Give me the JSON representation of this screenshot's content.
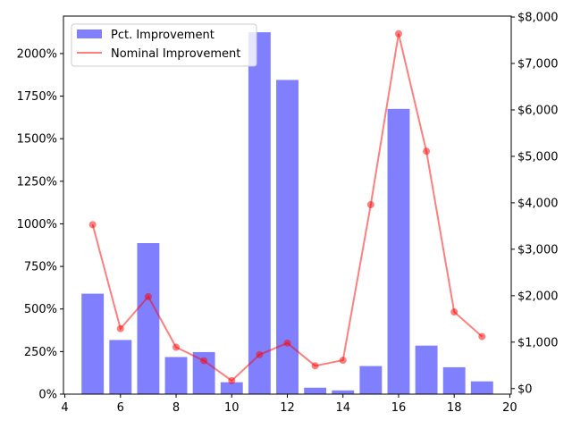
{
  "chart_data": {
    "type": "bar+line",
    "title": "",
    "xlabel": "",
    "ylabel": "",
    "x": [
      5,
      6,
      7,
      8,
      9,
      10,
      11,
      12,
      13,
      14,
      15,
      16,
      17,
      18,
      19
    ],
    "x_ticks": [
      4,
      6,
      8,
      10,
      12,
      14,
      16,
      18,
      20
    ],
    "x_tick_labels": [
      "4",
      "6",
      "8",
      "10",
      "12",
      "14",
      "16",
      "18",
      "20"
    ],
    "xlim": [
      3.95,
      20.05
    ],
    "series": [
      {
        "name": "Pct. Improvement",
        "type": "bar",
        "axis": "left",
        "color": "#8080ff",
        "values": [
          590,
          318,
          887,
          218,
          247,
          70,
          2125,
          1845,
          38,
          22,
          165,
          1675,
          285,
          158,
          75
        ]
      },
      {
        "name": "Nominal Improvement",
        "type": "line",
        "axis": "right",
        "color": "#ff0000",
        "values": [
          3530,
          1290,
          1980,
          890,
          600,
          170,
          730,
          980,
          490,
          610,
          3960,
          7640,
          5110,
          1650,
          1120
        ]
      }
    ],
    "y_left": {
      "lim": [
        0,
        2220
      ],
      "ticks": [
        0,
        250,
        500,
        750,
        1000,
        1250,
        1500,
        1750,
        2000
      ],
      "tick_labels": [
        "0%",
        "250%",
        "500%",
        "750%",
        "1000%",
        "1250%",
        "1500%",
        "1750%",
        "2000%"
      ]
    },
    "y_right": {
      "lim": [
        -120,
        8020
      ],
      "ticks": [
        0,
        1000,
        2000,
        3000,
        4000,
        5000,
        6000,
        7000,
        8000
      ],
      "tick_labels": [
        "$0",
        "$1,000",
        "$2,000",
        "$3,000",
        "$4,000",
        "$5,000",
        "$6,000",
        "$7,000",
        "$8,000"
      ]
    },
    "legend": {
      "position": "top-left",
      "entries": [
        "Pct. Improvement",
        "Nominal Improvement"
      ]
    },
    "grid": false
  }
}
